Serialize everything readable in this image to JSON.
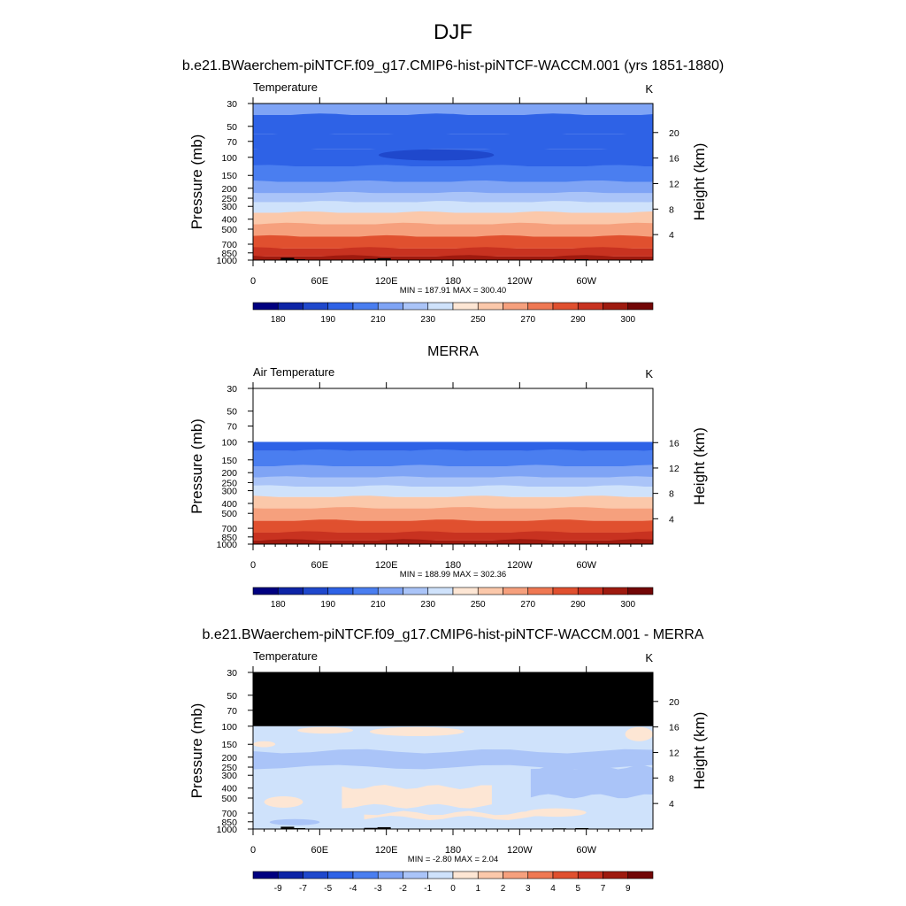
{
  "figure": {
    "season_title": "DJF",
    "model_title": "b.e21.BWaerchem-piNTCF.f09_g17.CMIP6-hist-piNTCF-WACCM.001 (yrs 1851-1880)",
    "obs_title": "MERRA",
    "diff_title": "b.e21.BWaerchem-piNTCF.f09_g17.CMIP6-hist-piNTCF-WACCM.001 - MERRA"
  },
  "colors": {
    "abs_palette": [
      "#000080",
      "#0d24a6",
      "#1f48cc",
      "#2e62e6",
      "#4a7ef0",
      "#7fa4f5",
      "#aac4f8",
      "#cfe2fb",
      "#fde6d4",
      "#fbc8aa",
      "#f6a07d",
      "#ef7853",
      "#e0502f",
      "#c83220",
      "#9e1a0f",
      "#720606"
    ],
    "diff_palette": [
      "#000080",
      "#0d24a6",
      "#1f48cc",
      "#2e62e6",
      "#4a7ef0",
      "#7fa4f5",
      "#aac4f8",
      "#cfe2fb",
      "#fde6d4",
      "#fbc8aa",
      "#f6a07d",
      "#ef7853",
      "#e0502f",
      "#c83220",
      "#9e1a0f",
      "#720606"
    ],
    "missing": "#000000"
  },
  "chart_data": [
    {
      "type": "heatmap",
      "panel": "model",
      "left_title": "Temperature",
      "units": "K",
      "ylabel": "Pressure (mb)",
      "y2label": "Height (km)",
      "pressure_ticks": [
        30,
        50,
        70,
        100,
        150,
        200,
        250,
        300,
        400,
        500,
        700,
        850,
        1000
      ],
      "height_ticks": [
        4,
        8,
        12,
        16,
        20
      ],
      "height_ticks_max_p": 30,
      "lon_ticks": [
        "0",
        "60E",
        "120E",
        "180",
        "120W",
        "60W"
      ],
      "stats": "MIN = 187.91  MAX = 300.40",
      "colorbar_labels": [
        "180",
        "190",
        "210",
        "230",
        "250",
        "270",
        "290",
        "300"
      ],
      "profile_p": [
        30,
        50,
        70,
        100,
        150,
        200,
        250,
        300,
        400,
        500,
        700,
        850,
        1000
      ],
      "profile_idx": [
        5,
        3,
        3,
        3,
        4,
        5,
        6,
        7,
        9,
        10,
        12,
        13,
        14
      ],
      "valid_top": 30,
      "blob": {
        "lon": 165,
        "p": 95,
        "lon_half": 52,
        "p_half": 8,
        "idx": 2
      },
      "topo": [
        [
          10,
          1000,
          1020
        ],
        [
          25,
          950,
          1020
        ],
        [
          35,
          980,
          1020
        ],
        [
          100,
          975,
          1020
        ],
        [
          112,
          960,
          1020
        ],
        [
          125,
          990,
          1020
        ],
        [
          160,
          990,
          1020
        ],
        [
          175,
          990,
          1020
        ],
        [
          270,
          985,
          1020
        ],
        [
          290,
          980,
          1020
        ]
      ]
    },
    {
      "type": "heatmap",
      "panel": "obs",
      "left_title": "Air Temperature",
      "units": "K",
      "ylabel": "Pressure (mb)",
      "y2label": "Height (km)",
      "pressure_ticks": [
        30,
        50,
        70,
        100,
        150,
        200,
        250,
        300,
        400,
        500,
        700,
        850,
        1000
      ],
      "height_ticks": [
        4,
        8,
        12,
        16
      ],
      "height_ticks_max_p": 100,
      "lon_ticks": [
        "0",
        "60E",
        "120E",
        "180",
        "120W",
        "60W"
      ],
      "stats": "MIN = 188.99  MAX = 302.36",
      "colorbar_labels": [
        "180",
        "190",
        "210",
        "230",
        "250",
        "270",
        "290",
        "300"
      ],
      "profile_p": [
        100,
        150,
        200,
        250,
        300,
        400,
        500,
        700,
        850,
        1000
      ],
      "profile_idx": [
        3,
        4,
        5,
        6,
        7,
        9,
        10,
        12,
        13,
        14
      ],
      "valid_top": 100,
      "blob": null,
      "topo": []
    },
    {
      "type": "heatmap",
      "panel": "difference",
      "left_title": "Temperature",
      "units": "K",
      "ylabel": "Pressure (mb)",
      "y2label": "Height (km)",
      "pressure_ticks": [
        30,
        50,
        70,
        100,
        150,
        200,
        250,
        300,
        400,
        500,
        700,
        850,
        1000
      ],
      "height_ticks": [
        4,
        8,
        12,
        16,
        20
      ],
      "height_ticks_max_p": 30,
      "lon_ticks": [
        "0",
        "60E",
        "120E",
        "180",
        "120W",
        "60W"
      ],
      "stats": "MIN =  -2.80  MAX =   2.04",
      "colorbar_labels": [
        "-9",
        "-7",
        "-5",
        "-4",
        "-3",
        "-2",
        "-1",
        "0",
        "1",
        "2",
        "3",
        "4",
        "5",
        "7",
        "9"
      ],
      "missing_above": 100,
      "base_idx": 7,
      "patches": [
        {
          "idx": 6,
          "lon0": 0,
          "lon1": 360,
          "p0": 175,
          "p1": 250,
          "wavy": true
        },
        {
          "idx": 6,
          "lon0": 250,
          "lon1": 360,
          "p0": 250,
          "p1": 480,
          "wavy": true
        },
        {
          "idx": 8,
          "lon0": 40,
          "lon1": 90,
          "p0": 102,
          "p1": 118,
          "wavy": false
        },
        {
          "idx": 8,
          "lon0": 105,
          "lon1": 190,
          "p0": 102,
          "p1": 125,
          "wavy": false
        },
        {
          "idx": 8,
          "lon0": 335,
          "lon1": 360,
          "p0": 102,
          "p1": 140,
          "wavy": false
        },
        {
          "idx": 8,
          "lon0": 0,
          "lon1": 20,
          "p0": 140,
          "p1": 160,
          "wavy": false
        },
        {
          "idx": 8,
          "lon0": 80,
          "lon1": 215,
          "p0": 390,
          "p1": 600,
          "wavy": true
        },
        {
          "idx": 8,
          "lon0": 100,
          "lon1": 265,
          "p0": 700,
          "p1": 780,
          "wavy": true
        },
        {
          "idx": 8,
          "lon0": 10,
          "lon1": 45,
          "p0": 480,
          "p1": 620,
          "wavy": false
        },
        {
          "idx": 8,
          "lon0": 245,
          "lon1": 300,
          "p0": 630,
          "p1": 760,
          "wavy": false
        },
        {
          "idx": 6,
          "lon0": 15,
          "lon1": 60,
          "p0": 800,
          "p1": 920,
          "wavy": false
        }
      ],
      "topo": [
        [
          10,
          1000,
          1020
        ],
        [
          25,
          950,
          1020
        ],
        [
          35,
          980,
          1020
        ],
        [
          100,
          975,
          1020
        ],
        [
          112,
          960,
          1020
        ],
        [
          125,
          990,
          1020
        ],
        [
          160,
          990,
          1020
        ],
        [
          175,
          990,
          1020
        ],
        [
          270,
          985,
          1020
        ],
        [
          290,
          980,
          1020
        ]
      ]
    }
  ]
}
